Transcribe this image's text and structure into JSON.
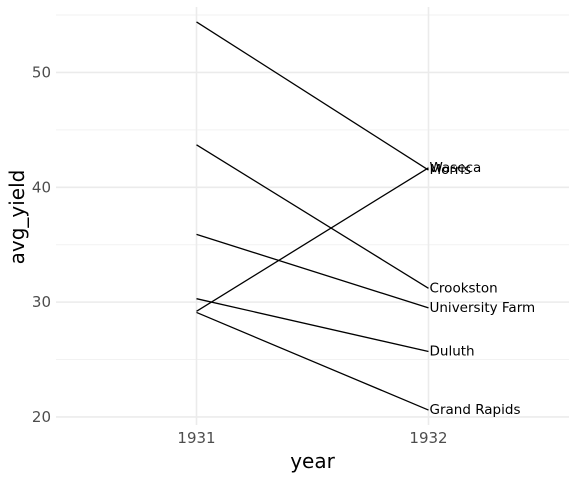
{
  "chart_data": {
    "type": "line",
    "xlabel": "year",
    "ylabel": "avg_yield",
    "x": [
      "1931",
      "1932"
    ],
    "ylim": [
      19.3,
      55.7
    ],
    "yticks": [
      20,
      30,
      40,
      50
    ],
    "grid": true,
    "series": [
      {
        "name": "Waseca",
        "values": [
          29.2,
          41.7
        ]
      },
      {
        "name": "Morris",
        "values": [
          54.4,
          41.5
        ]
      },
      {
        "name": "Crookston",
        "values": [
          43.7,
          31.2
        ]
      },
      {
        "name": "University Farm",
        "values": [
          35.9,
          29.5
        ]
      },
      {
        "name": "Duluth",
        "values": [
          30.3,
          25.7
        ]
      },
      {
        "name": "Grand Rapids",
        "values": [
          29.1,
          20.6
        ]
      }
    ]
  }
}
